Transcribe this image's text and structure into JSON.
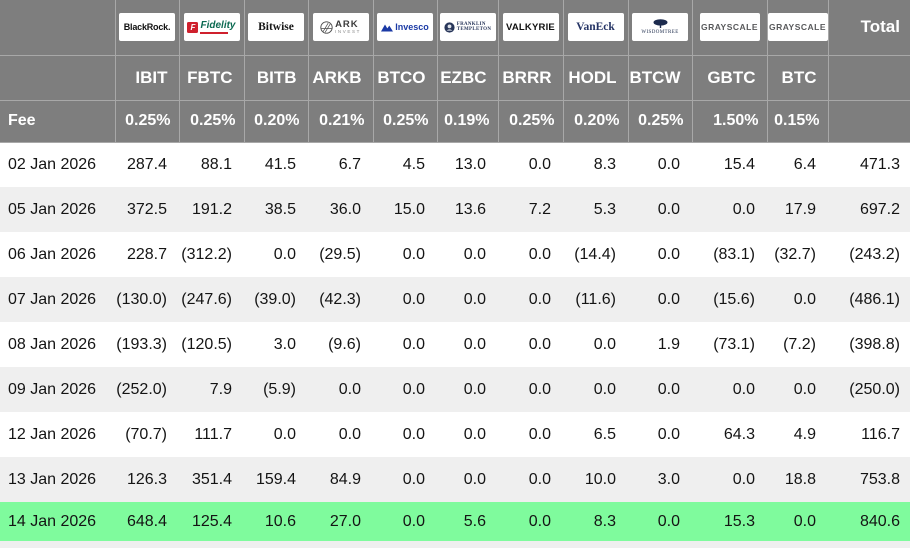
{
  "chart_data": {
    "type": "table",
    "columns": [
      "IBIT",
      "FBTC",
      "BITB",
      "ARKB",
      "BTCO",
      "EZBC",
      "BRRR",
      "HODL",
      "BTCW",
      "GBTC",
      "BTC"
    ],
    "providers": [
      "BlackRock",
      "Fidelity",
      "Bitwise",
      "ARK Invest",
      "Invesco",
      "Franklin Templeton",
      "Valkyrie",
      "VanEck",
      "WisdomTree",
      "Grayscale",
      "Grayscale"
    ],
    "fees": [
      "0.25%",
      "0.25%",
      "0.20%",
      "0.21%",
      "0.25%",
      "0.19%",
      "0.25%",
      "0.20%",
      "0.25%",
      "1.50%",
      "0.15%"
    ],
    "rows": [
      {
        "date": "02 Jan 2026",
        "values": [
          287.4,
          88.1,
          41.5,
          6.7,
          4.5,
          13.0,
          0.0,
          8.3,
          0.0,
          15.4,
          6.4
        ],
        "total": 471.3
      },
      {
        "date": "05 Jan 2026",
        "values": [
          372.5,
          191.2,
          38.5,
          36.0,
          15.0,
          13.6,
          7.2,
          5.3,
          0.0,
          0.0,
          17.9
        ],
        "total": 697.2
      },
      {
        "date": "06 Jan 2026",
        "values": [
          228.7,
          -312.2,
          0.0,
          -29.5,
          0.0,
          0.0,
          0.0,
          -14.4,
          0.0,
          -83.1,
          -32.7
        ],
        "total": -243.2
      },
      {
        "date": "07 Jan 2026",
        "values": [
          -130.0,
          -247.6,
          -39.0,
          -42.3,
          0.0,
          0.0,
          0.0,
          -11.6,
          0.0,
          -15.6,
          0.0
        ],
        "total": -486.1
      },
      {
        "date": "08 Jan 2026",
        "values": [
          -193.3,
          -120.5,
          3.0,
          -9.6,
          0.0,
          0.0,
          0.0,
          0.0,
          1.9,
          -73.1,
          -7.2
        ],
        "total": -398.8
      },
      {
        "date": "09 Jan 2026",
        "values": [
          -252.0,
          7.9,
          -5.9,
          0.0,
          0.0,
          0.0,
          0.0,
          0.0,
          0.0,
          0.0,
          0.0
        ],
        "total": -250.0
      },
      {
        "date": "12 Jan 2026",
        "values": [
          -70.7,
          111.7,
          0.0,
          0.0,
          0.0,
          0.0,
          0.0,
          6.5,
          0.0,
          64.3,
          4.9
        ],
        "total": 116.7
      },
      {
        "date": "13 Jan 2026",
        "values": [
          126.3,
          351.4,
          159.4,
          84.9,
          0.0,
          0.0,
          0.0,
          10.0,
          3.0,
          0.0,
          18.8
        ],
        "total": 753.8
      },
      {
        "date": "14 Jan 2026",
        "values": [
          648.4,
          125.4,
          10.6,
          27.0,
          0.0,
          5.6,
          0.0,
          8.3,
          0.0,
          15.3,
          0.0
        ],
        "total": 840.6,
        "highlight": true
      }
    ],
    "negative_style": "red-parentheses",
    "highlighted_row": "14 Jan 2026"
  },
  "header": {
    "fee_label": "Fee",
    "total_label": "Total",
    "logos": {
      "blackrock": "BlackRock.",
      "fidelity_f": "F",
      "fidelity": "Fidelity",
      "bitwise": "Bitwise",
      "ark": "ARK",
      "ark_sub": "INVEST",
      "invesco": "Invesco",
      "franklin": "FRANKLIN",
      "templeton": "TEMPLETON",
      "valkyrie": "VALKYRIE",
      "vaneck": "VanEck",
      "wisdomtree": "WISDOMTREE",
      "grayscale_gbtc": "GRAYSCALE",
      "grayscale_btc": "GRAYSCALE"
    }
  },
  "colors": {
    "header_bg": "#7e7e7e",
    "negative": "#ee2328",
    "highlight_row": "#7ffb9d",
    "alt_row": "#efefef"
  }
}
